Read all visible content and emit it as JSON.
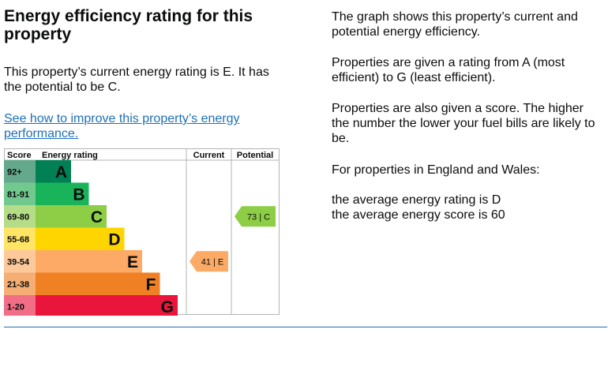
{
  "heading": "Energy efficiency rating for this property",
  "current_text": "This property’s current energy rating is E. It has the potential to be C.",
  "link_text": "See how to improve this property’s energy performance.",
  "right": {
    "p1": "The graph shows this property’s current and potential energy efficiency.",
    "p2": "Properties are given a rating from A (most efficient) to G (least efficient).",
    "p3": "Properties are also given a score. The higher the number the lower your fuel bills are likely to be.",
    "p4": "For properties in England and Wales:",
    "p5": "the average energy rating is D",
    "p6": "the average energy score is 60"
  },
  "colors": {
    "rule": "#1d70b8",
    "link": "#1d70b8"
  },
  "chart_data": {
    "type": "bar",
    "title": "Energy rating",
    "headers": {
      "score": "Score",
      "rating": "Energy rating",
      "current": "Current",
      "potential": "Potential"
    },
    "bands": [
      {
        "letter": "A",
        "range": "92+",
        "color": "#008054",
        "score_bg": "#64a98b"
      },
      {
        "letter": "B",
        "range": "81-91",
        "color": "#19b459",
        "score_bg": "#72c98f"
      },
      {
        "letter": "C",
        "range": "69-80",
        "color": "#8dce46",
        "score_bg": "#b5dd88"
      },
      {
        "letter": "D",
        "range": "55-68",
        "color": "#ffd500",
        "score_bg": "#ffe466"
      },
      {
        "letter": "E",
        "range": "39-54",
        "color": "#fcaa65",
        "score_bg": "#fdc99a"
      },
      {
        "letter": "F",
        "range": "21-38",
        "color": "#ef8023",
        "score_bg": "#f5ae73"
      },
      {
        "letter": "G",
        "range": "1-20",
        "color": "#e9153b",
        "score_bg": "#f26e86"
      }
    ],
    "current": {
      "score": 41,
      "letter": "E",
      "label": "41 | E"
    },
    "potential": {
      "score": 73,
      "letter": "C",
      "label": "73 | C"
    }
  }
}
